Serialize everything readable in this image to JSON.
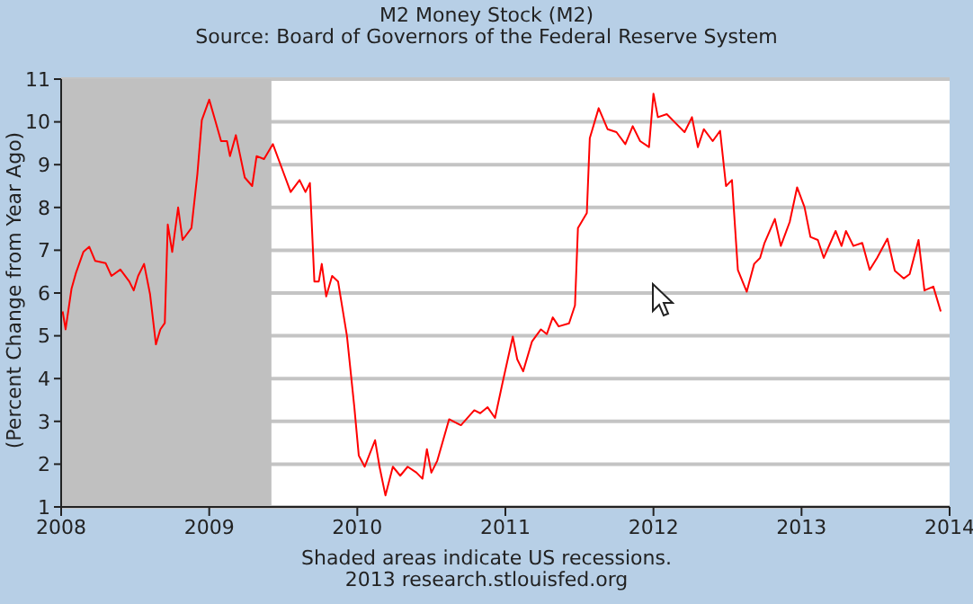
{
  "chart_data": {
    "type": "line",
    "title": "M2 Money Stock (M2)",
    "subtitle": "Source: Board of Governors of the Federal Reserve System",
    "ylabel": "(Percent Change from Year Ago)",
    "annotations": [
      "Shaded areas indicate US recessions.",
      "2013 research.stlouisfed.org"
    ],
    "x": [
      2008.01,
      2008.03,
      2008.07,
      2008.1,
      2008.15,
      2008.19,
      2008.23,
      2008.3,
      2008.34,
      2008.4,
      2008.46,
      2008.49,
      2008.52,
      2008.56,
      2008.6,
      2008.64,
      2008.67,
      2008.7,
      2008.72,
      2008.75,
      2008.79,
      2008.82,
      2008.88,
      2008.92,
      2008.95,
      2009.0,
      2009.04,
      2009.08,
      2009.12,
      2009.14,
      2009.18,
      2009.24,
      2009.29,
      2009.32,
      2009.37,
      2009.43,
      2009.49,
      2009.55,
      2009.61,
      2009.65,
      2009.68,
      2009.71,
      2009.74,
      2009.76,
      2009.79,
      2009.83,
      2009.87,
      2009.93,
      2009.98,
      2010.01,
      2010.05,
      2010.12,
      2010.15,
      2010.19,
      2010.24,
      2010.29,
      2010.34,
      2010.4,
      2010.44,
      2010.47,
      2010.5,
      2010.54,
      2010.62,
      2010.7,
      2010.79,
      2010.83,
      2010.88,
      2010.93,
      2010.98,
      2011.05,
      2011.08,
      2011.12,
      2011.18,
      2011.24,
      2011.28,
      2011.32,
      2011.36,
      2011.43,
      2011.47,
      2011.49,
      2011.55,
      2011.57,
      2011.63,
      2011.69,
      2011.75,
      2011.81,
      2011.86,
      2011.91,
      2011.97,
      2012.0,
      2012.03,
      2012.09,
      2012.17,
      2012.21,
      2012.26,
      2012.3,
      2012.34,
      2012.4,
      2012.45,
      2012.49,
      2012.53,
      2012.57,
      2012.63,
      2012.68,
      2012.72,
      2012.75,
      2012.82,
      2012.86,
      2012.92,
      2012.97,
      2013.02,
      2013.06,
      2013.11,
      2013.15,
      2013.23,
      2013.27,
      2013.3,
      2013.35,
      2013.41,
      2013.46,
      2013.51,
      2013.58,
      2013.63,
      2013.69,
      2013.73,
      2013.79,
      2013.83,
      2013.89,
      2013.94
    ],
    "series": [
      {
        "color": "#ff0000",
        "values": [
          5.57,
          5.15,
          6.1,
          6.47,
          6.96,
          7.08,
          6.75,
          6.7,
          6.4,
          6.55,
          6.27,
          6.06,
          6.4,
          6.68,
          5.98,
          4.8,
          5.15,
          5.3,
          7.6,
          6.96,
          8.0,
          7.24,
          7.52,
          8.78,
          10.04,
          10.52,
          10.04,
          9.55,
          9.55,
          9.2,
          9.69,
          8.7,
          8.5,
          9.2,
          9.13,
          9.48,
          8.92,
          8.36,
          8.64,
          8.36,
          8.57,
          6.27,
          6.27,
          6.68,
          5.92,
          6.4,
          6.27,
          5.0,
          3.33,
          2.2,
          1.94,
          2.56,
          1.94,
          1.27,
          1.94,
          1.73,
          1.94,
          1.8,
          1.66,
          2.35,
          1.8,
          2.08,
          3.05,
          2.91,
          3.26,
          3.19,
          3.33,
          3.08,
          3.89,
          4.98,
          4.45,
          4.17,
          4.87,
          5.15,
          5.04,
          5.43,
          5.22,
          5.29,
          5.71,
          7.52,
          7.87,
          9.62,
          10.32,
          9.83,
          9.76,
          9.48,
          9.9,
          9.55,
          9.41,
          10.66,
          10.11,
          10.18,
          9.9,
          9.76,
          10.11,
          9.41,
          9.83,
          9.55,
          9.79,
          8.5,
          8.64,
          6.54,
          6.03,
          6.68,
          6.82,
          7.17,
          7.73,
          7.1,
          7.66,
          8.47,
          8.01,
          7.31,
          7.24,
          6.82,
          7.45,
          7.1,
          7.45,
          7.1,
          7.17,
          6.54,
          6.82,
          7.27,
          6.52,
          6.34,
          6.44,
          7.24,
          6.06,
          6.15,
          5.57
        ]
      }
    ],
    "xlim": [
      2008,
      2014
    ],
    "xticks": [
      2008,
      2009,
      2010,
      2011,
      2012,
      2013,
      2014
    ],
    "ylim": [
      1,
      11
    ],
    "yticks": [
      1,
      2,
      3,
      4,
      5,
      6,
      7,
      8,
      9,
      10,
      11
    ],
    "bands": [
      {
        "axis": "x",
        "from": 2008,
        "to": 2009.42,
        "color": "#c0c0c0"
      }
    ],
    "grid": "y",
    "marker": "none",
    "line_style": "solid"
  }
}
